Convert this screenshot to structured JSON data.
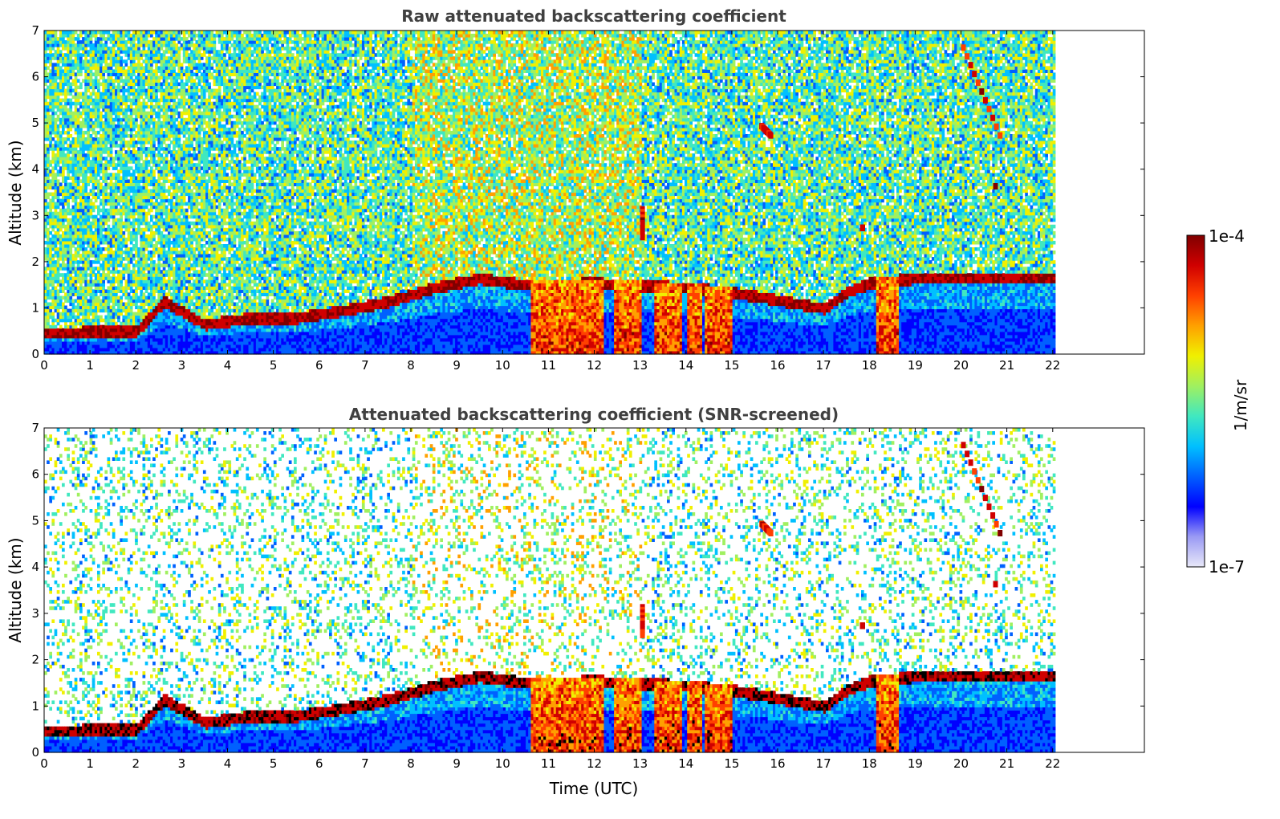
{
  "chart_data": [
    {
      "type": "heatmap",
      "title": "Raw attenuated backscattering coefficient",
      "xlabel": "",
      "ylabel": "Altitude (km)",
      "xlim": [
        0,
        24
      ],
      "ylim": [
        0,
        7
      ],
      "x_ticks": [
        "0",
        "1",
        "2",
        "3",
        "4",
        "5",
        "6",
        "7",
        "8",
        "9",
        "10",
        "11",
        "12",
        "13",
        "14",
        "15",
        "16",
        "17",
        "18",
        "19",
        "20",
        "21",
        "22"
      ],
      "y_ticks": [
        "0",
        "1",
        "2",
        "3",
        "4",
        "5",
        "6",
        "7"
      ],
      "data_end_time": 22,
      "screened": false,
      "boundary_layer_top_km": [
        [
          0.0,
          0.4
        ],
        [
          1.0,
          0.45
        ],
        [
          2.0,
          0.45
        ],
        [
          2.6,
          1.1
        ],
        [
          3.5,
          0.6
        ],
        [
          4.5,
          0.75
        ],
        [
          5.5,
          0.75
        ],
        [
          6.5,
          0.9
        ],
        [
          7.5,
          1.1
        ],
        [
          8.5,
          1.4
        ],
        [
          9.5,
          1.6
        ],
        [
          10.5,
          1.45
        ],
        [
          12.0,
          1.5
        ],
        [
          13.0,
          1.45
        ],
        [
          14.0,
          1.4
        ],
        [
          15.0,
          1.3
        ],
        [
          17.0,
          0.95
        ],
        [
          17.5,
          1.3
        ],
        [
          18.0,
          1.5
        ],
        [
          19.0,
          1.6
        ]
      ],
      "strong_cloud_columns_utc": [
        [
          10.6,
          12.2
        ],
        [
          12.4,
          13.0
        ],
        [
          13.3,
          13.9
        ],
        [
          14.0,
          14.3
        ],
        [
          14.4,
          15.0
        ],
        [
          18.1,
          18.6
        ]
      ],
      "upper_features": [
        {
          "x": [
            20.0,
            20.8
          ],
          "y": [
            6.7,
            4.8
          ],
          "note": "cirrus streak"
        },
        {
          "x": [
            20.7,
            20.7
          ],
          "y": [
            3.7,
            3.7
          ]
        },
        {
          "x": [
            17.8,
            17.8
          ],
          "y": [
            2.8,
            2.8
          ]
        },
        {
          "x": [
            15.6,
            15.8
          ],
          "y": [
            5.0,
            4.8
          ]
        },
        {
          "x": [
            13.0,
            13.0
          ],
          "y": [
            3.2,
            2.6
          ]
        }
      ]
    },
    {
      "type": "heatmap",
      "title": "Attenuated backscattering coefficient (SNR-screened)",
      "xlabel": "Time (UTC)",
      "ylabel": "Altitude (km)",
      "xlim": [
        0,
        24
      ],
      "ylim": [
        0,
        7
      ],
      "x_ticks": [
        "0",
        "1",
        "2",
        "3",
        "4",
        "5",
        "6",
        "7",
        "8",
        "9",
        "10",
        "11",
        "12",
        "13",
        "14",
        "15",
        "16",
        "17",
        "18",
        "19",
        "20",
        "21",
        "22"
      ],
      "y_ticks": [
        "0",
        "1",
        "2",
        "3",
        "4",
        "5",
        "6",
        "7"
      ],
      "data_end_time": 22,
      "screened": true
    }
  ],
  "colorbar": {
    "label": "1/m/sr",
    "min_label": "1e-7",
    "max_label": "1e-4",
    "scale": "log",
    "colormap": [
      "#e8e8f8",
      "#9a9af4",
      "#0000ff",
      "#0060ff",
      "#00c0ff",
      "#40e8c0",
      "#a0f060",
      "#f0f000",
      "#ffa000",
      "#ff4000",
      "#d00000",
      "#800000"
    ]
  }
}
